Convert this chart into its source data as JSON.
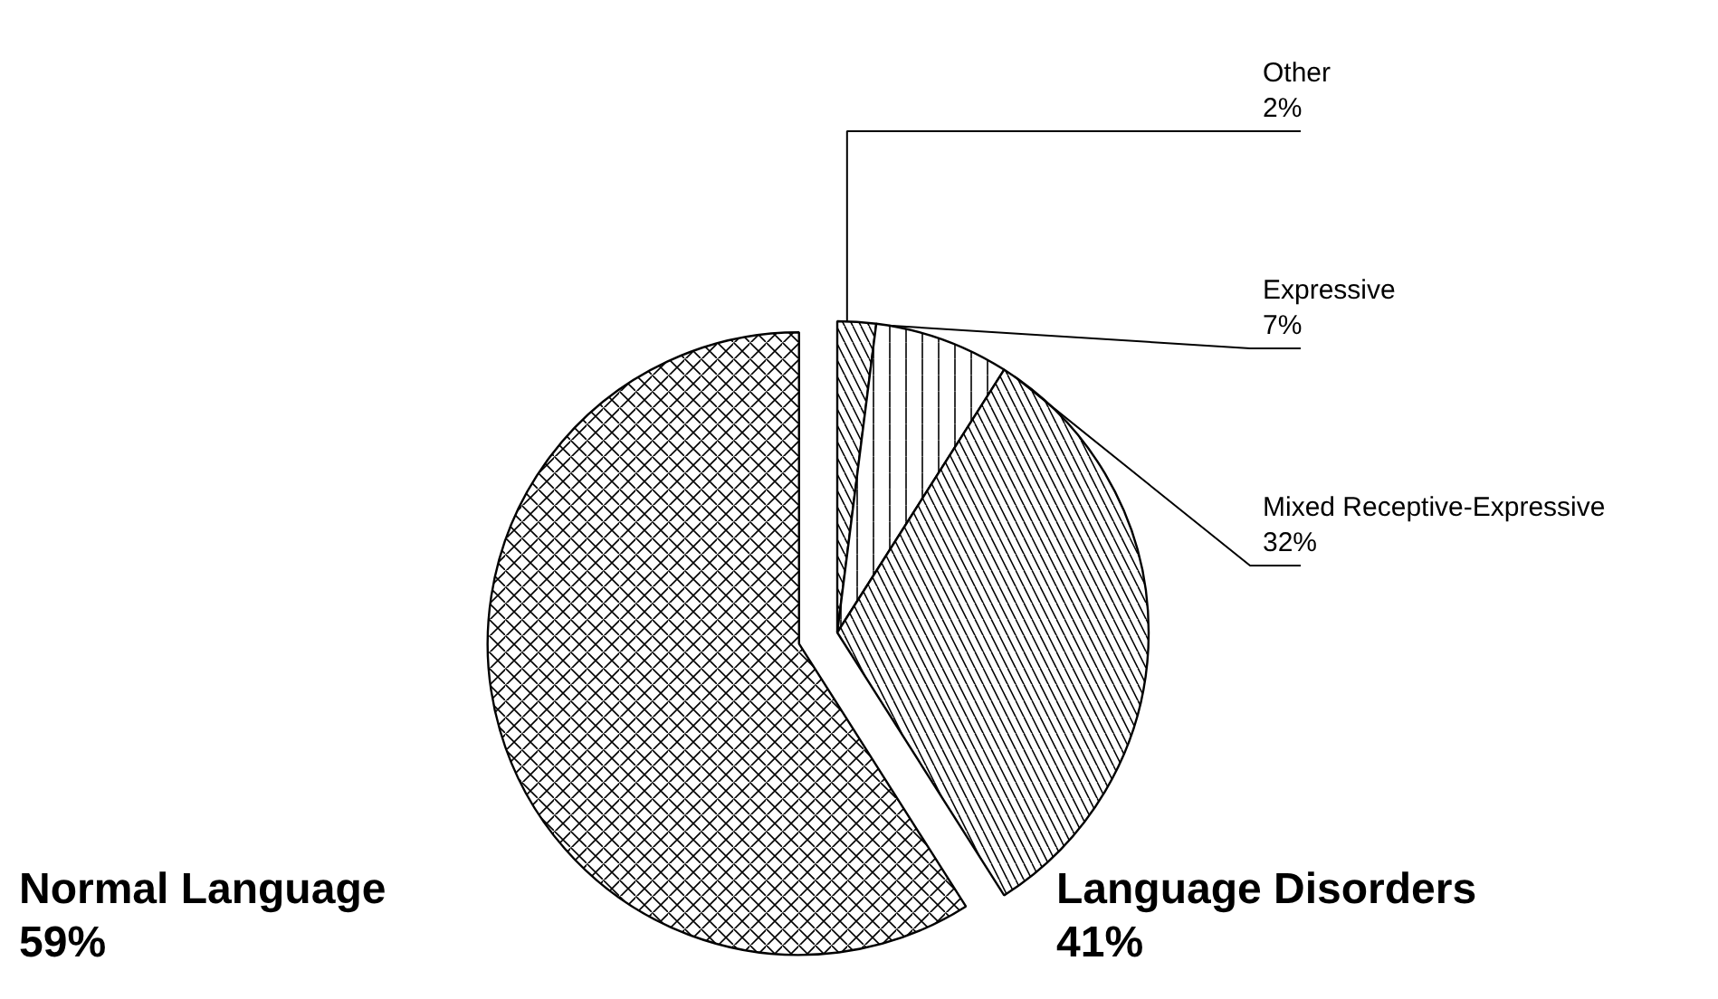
{
  "chart_data": {
    "type": "pie",
    "categories": [
      "Other",
      "Expressive",
      "Mixed Receptive-Expressive",
      "Normal Language"
    ],
    "values": [
      2,
      7,
      32,
      59
    ],
    "value_labels": [
      "2%",
      "7%",
      "32%",
      "59%"
    ],
    "colors": [
      "#ffffff",
      "#ffffff",
      "#ffffff",
      "#ffffff"
    ],
    "annotations": [
      "Language Disorders\n41%"
    ]
  }
}
